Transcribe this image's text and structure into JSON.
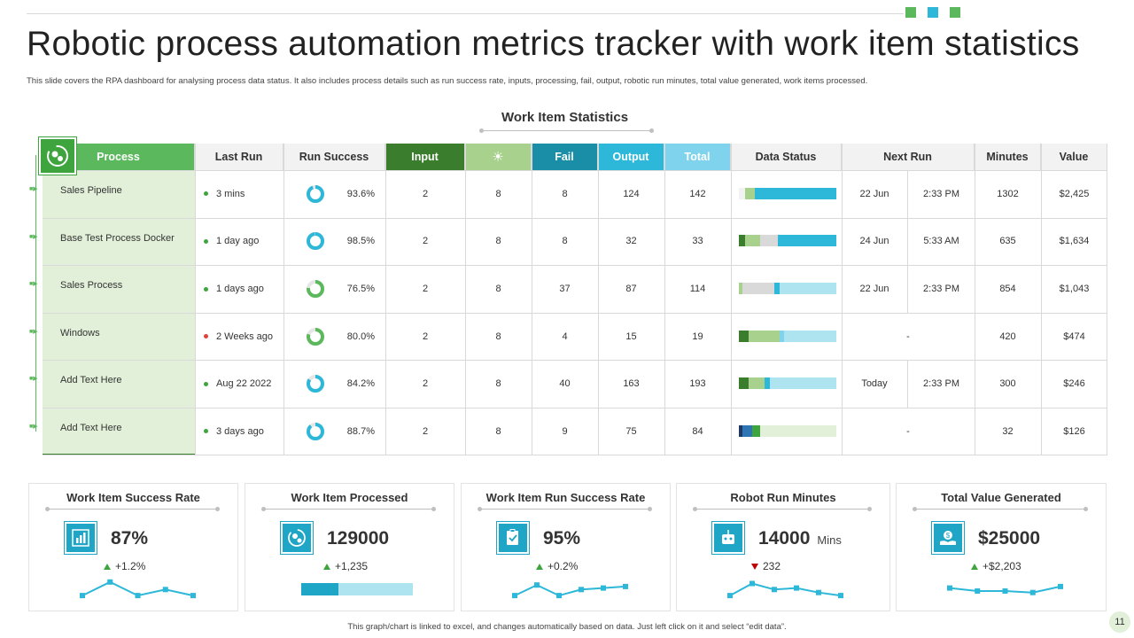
{
  "title": "Robotic process automation metrics tracker with work item statistics",
  "subtitle": "This slide covers the RPA  dashboard for analysing process data status. It also includes process details such as run success rate, inputs, processing, fail, output, robotic run minutes,  total value generated, work items processed.",
  "section_title": "Work Item  Statistics",
  "colors": {
    "green": "#5cb85c",
    "dark_green": "#3a7d2c",
    "light_green": "#a9d18e",
    "teal": "#1a8ea6",
    "cyan": "#2db7d8",
    "light_cyan": "#7fd3ec",
    "pale_cyan": "#aee3f0",
    "accent_squares": [
      "#5cb85c",
      "#2db7d8",
      "#5cb85c"
    ]
  },
  "table": {
    "headers": [
      "Process",
      "Last Run",
      "Run  Success",
      "Input",
      "processing-icon",
      "Fail",
      "Output",
      "Total",
      "Data Status",
      "Next Run",
      "Minutes",
      "Value"
    ],
    "rows": [
      {
        "process": "Sales Pipeline",
        "last_run": "3 mins",
        "dot": "#3ea43e",
        "success": "93.6%",
        "input": "2",
        "processing": "8",
        "fail": "8",
        "output": "124",
        "total": "142",
        "next_date": "22 Jun",
        "next_time": "2:33 PM",
        "next_single": "",
        "minutes": "1302",
        "value": "$2,425"
      },
      {
        "process": "Base Test Process Docker",
        "last_run": "1 day ago",
        "dot": "#3ea43e",
        "success": "98.5%",
        "input": "2",
        "processing": "8",
        "fail": "8",
        "output": "32",
        "total": "33",
        "next_date": "24 Jun",
        "next_time": "5:33 AM",
        "next_single": "",
        "minutes": "635",
        "value": "$1,634"
      },
      {
        "process": "Sales Process",
        "last_run": "1 days ago",
        "dot": "#3ea43e",
        "success": "76.5%",
        "input": "2",
        "processing": "8",
        "fail": "37",
        "output": "87",
        "total": "114",
        "next_date": "22 Jun",
        "next_time": "2:33 PM",
        "next_single": "",
        "minutes": "854",
        "value": "$1,043"
      },
      {
        "process": "Windows",
        "last_run": "2 Weeks ago",
        "dot": "#e0413a",
        "success": "80.0%",
        "input": "2",
        "processing": "8",
        "fail": "4",
        "output": "15",
        "total": "19",
        "next_date": "",
        "next_time": "",
        "next_single": "-",
        "minutes": "420",
        "value": "$474"
      },
      {
        "process": "Add Text Here",
        "last_run": "Aug 22 2022",
        "dot": "#3ea43e",
        "success": "84.2%",
        "input": "2",
        "processing": "8",
        "fail": "40",
        "output": "163",
        "total": "193",
        "next_date": "Today",
        "next_time": "2:33 PM",
        "next_single": "",
        "minutes": "300",
        "value": "$246"
      },
      {
        "process": "Add Text Here",
        "last_run": "3 days ago",
        "dot": "#3ea43e",
        "success": "88.7%",
        "input": "2",
        "processing": "8",
        "fail": "9",
        "output": "75",
        "total": "84",
        "next_date": "",
        "next_time": "",
        "next_single": "-",
        "minutes": "32",
        "value": "$126"
      }
    ]
  },
  "kpis": [
    {
      "title": "Work Item Success Rate",
      "value": "87%",
      "unit": "",
      "delta": "+1.2%",
      "trend": "up",
      "icon": "bar-chart-icon",
      "sparkline": [
        0.35,
        0.8,
        0.35,
        0.55,
        0.35
      ]
    },
    {
      "title": "Work Item Processed",
      "value": "129000",
      "unit": "",
      "delta": "+1,235",
      "trend": "up",
      "icon": "gears-refresh-icon",
      "progress": 0.33
    },
    {
      "title": "Work Item Run  Success Rate",
      "value": "95%",
      "unit": "",
      "delta": "+0.2%",
      "trend": "up",
      "icon": "clipboard-icon",
      "sparkline": [
        0.35,
        0.7,
        0.35,
        0.55,
        0.6,
        0.65
      ]
    },
    {
      "title": "Robot Run Minutes",
      "value": "14000",
      "unit": "Mins",
      "delta": "232",
      "trend": "down",
      "icon": "robot-icon",
      "sparkline": [
        0.35,
        0.75,
        0.55,
        0.6,
        0.45,
        0.35
      ]
    },
    {
      "title": "Total Value Generated",
      "value": "$25000",
      "unit": "",
      "delta": "+$2,203",
      "trend": "up",
      "icon": "money-hand-icon",
      "sparkline": [
        0.6,
        0.5,
        0.5,
        0.45,
        0.65
      ]
    }
  ],
  "footer": "This graph/chart is linked to excel, and changes automatically based on data. Just left click on it and select “edit data”.",
  "page_number": "11"
}
